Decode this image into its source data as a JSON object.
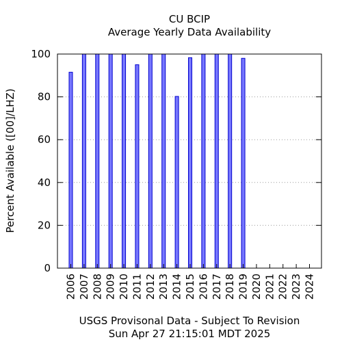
{
  "chart_data": {
    "type": "bar",
    "title": "CU BCIP",
    "subtitle": "Average Yearly Data Availability",
    "ylabel": "Percent Available ([00]/LHZ)",
    "xlabel": "",
    "footer": [
      "USGS Provisonal Data - Subject To Revision",
      "Sun Apr 27 21:15:01 MDT 2025"
    ],
    "categories": [
      "2006",
      "2007",
      "2008",
      "2009",
      "2010",
      "2011",
      "2012",
      "2013",
      "2014",
      "2015",
      "2016",
      "2017",
      "2018",
      "2019",
      "2020",
      "2021",
      "2022",
      "2023",
      "2024"
    ],
    "values": [
      91.5,
      100,
      100,
      100,
      100,
      95,
      100,
      100,
      80.2,
      98.3,
      100,
      100,
      100,
      98,
      null,
      null,
      null,
      null,
      null
    ],
    "ylim": [
      0,
      100
    ],
    "yticks": [
      0,
      20,
      40,
      60,
      80,
      100
    ],
    "grid": true,
    "bar_fill": "#7777ff",
    "bar_stroke": "#0000cc"
  }
}
